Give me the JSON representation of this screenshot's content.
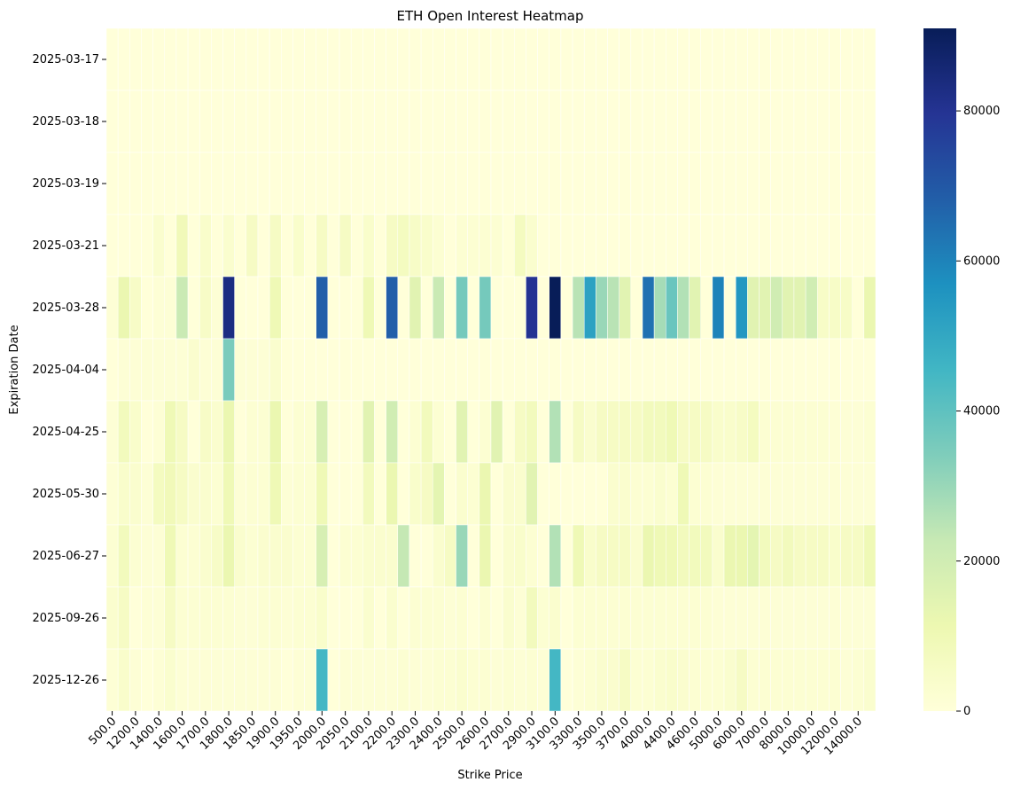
{
  "chart_data": {
    "type": "heatmap",
    "title": "ETH Open Interest Heatmap",
    "xlabel": "Strike Price",
    "ylabel": "Expiration Date",
    "y_categories": [
      "2025-03-17",
      "2025-03-18",
      "2025-03-19",
      "2025-03-21",
      "2025-03-28",
      "2025-04-04",
      "2025-04-25",
      "2025-05-30",
      "2025-06-27",
      "2025-09-26",
      "2025-12-26"
    ],
    "x_tick_labels": [
      "500.0",
      "1200.0",
      "1400.0",
      "1600.0",
      "1700.0",
      "1800.0",
      "1850.0",
      "1900.0",
      "1950.0",
      "2000.0",
      "2050.0",
      "2100.0",
      "2200.0",
      "2300.0",
      "2400.0",
      "2500.0",
      "2600.0",
      "2700.0",
      "2900.0",
      "3100.0",
      "3300.0",
      "3500.0",
      "3700.0",
      "4000.0",
      "4400.0",
      "4600.0",
      "5000.0",
      "6000.0",
      "7000.0",
      "8000.0",
      "10000.0",
      "12000.0",
      "14000.0"
    ],
    "x_tick_every": 2,
    "values": [
      [
        0,
        0,
        0,
        0,
        0,
        0,
        0,
        0,
        0,
        0,
        0,
        0,
        0,
        0,
        0,
        0,
        0,
        0,
        0,
        0,
        0,
        0,
        0,
        0,
        0,
        0,
        0,
        0,
        0,
        0,
        0,
        0,
        0,
        0,
        0,
        0,
        0,
        0,
        0,
        0,
        0,
        0,
        0,
        0,
        0,
        0,
        0,
        0,
        0,
        0,
        0,
        0,
        0,
        0,
        0,
        0,
        0,
        0,
        0,
        0,
        0,
        0,
        0,
        0,
        0,
        0
      ],
      [
        0,
        0,
        0,
        0,
        0,
        0,
        0,
        0,
        0,
        0,
        0,
        0,
        0,
        0,
        0,
        0,
        0,
        0,
        0,
        0,
        0,
        0,
        0,
        0,
        0,
        0,
        0,
        0,
        0,
        0,
        0,
        0,
        0,
        0,
        0,
        0,
        0,
        0,
        0,
        0,
        0,
        0,
        0,
        0,
        0,
        0,
        0,
        0,
        0,
        0,
        0,
        0,
        0,
        0,
        0,
        0,
        0,
        0,
        0,
        0,
        0,
        0,
        0,
        0,
        0,
        0
      ],
      [
        0,
        0,
        0,
        0,
        0,
        0,
        0,
        0,
        0,
        0,
        0,
        0,
        0,
        0,
        0,
        0,
        0,
        0,
        0,
        0,
        0,
        0,
        0,
        0,
        0,
        0,
        0,
        0,
        0,
        0,
        0,
        0,
        0,
        0,
        0,
        0,
        0,
        0,
        0,
        0,
        0,
        0,
        0,
        0,
        0,
        0,
        0,
        0,
        0,
        0,
        0,
        0,
        0,
        0,
        0,
        0,
        0,
        0,
        0,
        0,
        0,
        0,
        0,
        0,
        0,
        0
      ],
      [
        0,
        0,
        0,
        0,
        3000,
        0,
        9000,
        0,
        4000,
        0,
        3000,
        0,
        6000,
        0,
        6000,
        0,
        4000,
        0,
        6000,
        0,
        6000,
        0,
        4000,
        0,
        6000,
        7000,
        5000,
        4000,
        2000,
        0,
        2000,
        2000,
        2000,
        2000,
        0,
        7000,
        3000,
        0,
        0,
        0,
        0,
        0,
        0,
        0,
        0,
        0,
        0,
        0,
        0,
        0,
        0,
        0,
        0,
        0,
        0,
        0,
        0,
        0,
        0,
        0,
        0,
        0,
        0,
        0,
        0,
        0
      ],
      [
        1000,
        12000,
        5000,
        0,
        1000,
        1000,
        22000,
        0,
        5000,
        1000,
        83000,
        0,
        0,
        0,
        10000,
        0,
        0,
        0,
        68000,
        0,
        0,
        0,
        10000,
        0,
        68000,
        0,
        15000,
        0,
        22000,
        0,
        36000,
        0,
        36000,
        0,
        0,
        0,
        80000,
        0,
        91000,
        0,
        25000,
        52000,
        30000,
        25000,
        15000,
        0,
        64000,
        28000,
        38000,
        26000,
        15000,
        0,
        60000,
        0,
        55000,
        15000,
        15000,
        20000,
        15000,
        15000,
        20000,
        5000,
        5000,
        5000,
        0,
        12000
      ],
      [
        0,
        1000,
        1000,
        1000,
        1000,
        1000,
        1000,
        3000,
        1000,
        1000,
        35000,
        1000,
        1000,
        1000,
        3000,
        0,
        0,
        0,
        0,
        0,
        0,
        0,
        0,
        0,
        0,
        0,
        0,
        0,
        0,
        0,
        0,
        0,
        0,
        0,
        0,
        0,
        0,
        0,
        0,
        0,
        0,
        0,
        0,
        0,
        0,
        0,
        0,
        0,
        0,
        0,
        0,
        0,
        0,
        0,
        0,
        0,
        0,
        0,
        0,
        0,
        0,
        0,
        0,
        0,
        0,
        0
      ],
      [
        1000,
        8000,
        4000,
        0,
        1000,
        10000,
        6000,
        0,
        5000,
        3000,
        12000,
        0,
        2000,
        2000,
        12000,
        0,
        2000,
        2000,
        18000,
        0,
        0,
        0,
        15000,
        0,
        20000,
        0,
        2000,
        8000,
        2000,
        0,
        15000,
        0,
        2000,
        15000,
        0,
        6000,
        8000,
        0,
        26000,
        0,
        6000,
        3000,
        6000,
        6000,
        6000,
        6000,
        8000,
        8000,
        10000,
        6000,
        6000,
        6000,
        4000,
        4000,
        5000,
        7000,
        2000,
        2000,
        2000,
        2000,
        2000,
        2000,
        1000,
        1000,
        1000,
        2000
      ],
      [
        1000,
        4000,
        3000,
        1000,
        7000,
        9000,
        6000,
        3000,
        3000,
        2000,
        10000,
        1000,
        2000,
        2000,
        10000,
        1000,
        2000,
        2000,
        10000,
        0,
        0,
        0,
        8000,
        0,
        12000,
        0,
        4000,
        6000,
        14000,
        0,
        3000,
        2000,
        12000,
        0,
        3000,
        3000,
        15000,
        0,
        0,
        0,
        0,
        0,
        0,
        3000,
        3000,
        2000,
        2000,
        3000,
        2000,
        10000,
        2000,
        2000,
        1000,
        1000,
        1000,
        1000,
        1000,
        1000,
        1000,
        1000,
        1000,
        1000,
        1000,
        1000,
        1000,
        1000
      ],
      [
        2000,
        8000,
        2000,
        1000,
        1000,
        10000,
        2000,
        2000,
        3000,
        5000,
        12000,
        3000,
        2000,
        3000,
        3000,
        3000,
        2000,
        2000,
        18000,
        0,
        2000,
        2000,
        3000,
        3000,
        3000,
        23000,
        0,
        0,
        3000,
        6000,
        30000,
        0,
        12000,
        0,
        3000,
        4000,
        2000,
        0,
        26000,
        0,
        10000,
        4000,
        6000,
        6000,
        6000,
        3000,
        12000,
        10000,
        10000,
        8000,
        8000,
        8000,
        3000,
        12000,
        12000,
        14000,
        8000,
        6000,
        8000,
        6000,
        6000,
        6000,
        4000,
        6000,
        6000,
        10000
      ],
      [
        3000,
        6000,
        0,
        1000,
        1000,
        6000,
        2000,
        2000,
        2000,
        2000,
        2000,
        1000,
        1000,
        2000,
        2000,
        1000,
        2000,
        2000,
        4000,
        0,
        0,
        0,
        3000,
        0,
        3000,
        0,
        2000,
        2000,
        2000,
        1000,
        2000,
        0,
        2000,
        0,
        3000,
        1000,
        8000,
        2000,
        3000,
        0,
        2000,
        2000,
        2000,
        2000,
        2000,
        2000,
        2000,
        2000,
        2000,
        2000,
        2000,
        2000,
        1000,
        1000,
        1000,
        1000,
        1000,
        1000,
        1000,
        1000,
        1000,
        1000,
        1000,
        1000,
        1000,
        1000
      ],
      [
        1000,
        4000,
        1000,
        0,
        1000,
        3000,
        1000,
        1000,
        1000,
        1000,
        1000,
        1000,
        1000,
        1000,
        1000,
        0,
        1000,
        1000,
        45000,
        0,
        1000,
        1000,
        1000,
        1000,
        1000,
        2000,
        1000,
        1000,
        2000,
        2000,
        3000,
        2000,
        2000,
        1000,
        2000,
        1000,
        2000,
        1000,
        45000,
        0,
        1000,
        2000,
        3000,
        3000,
        6000,
        2000,
        2000,
        3000,
        4000,
        3000,
        2000,
        2000,
        2000,
        3000,
        6000,
        2000,
        2000,
        2000,
        2000,
        2000,
        2000,
        2000,
        2000,
        1000,
        2000,
        3000
      ]
    ],
    "colorbar": {
      "min": 0,
      "max": 91000,
      "ticks": [
        0,
        20000,
        40000,
        60000,
        80000
      ],
      "tick_labels": [
        "0",
        "20000",
        "40000",
        "60000",
        "80000"
      ]
    },
    "colormap": "YlGnBu",
    "colormap_stops": [
      "#ffffd9",
      "#edf8b1",
      "#c7e9b4",
      "#7fcdbb",
      "#41b6c4",
      "#1d91c0",
      "#225ea8",
      "#253494",
      "#081d58"
    ],
    "grid": false,
    "legend": "colorbar-right"
  }
}
